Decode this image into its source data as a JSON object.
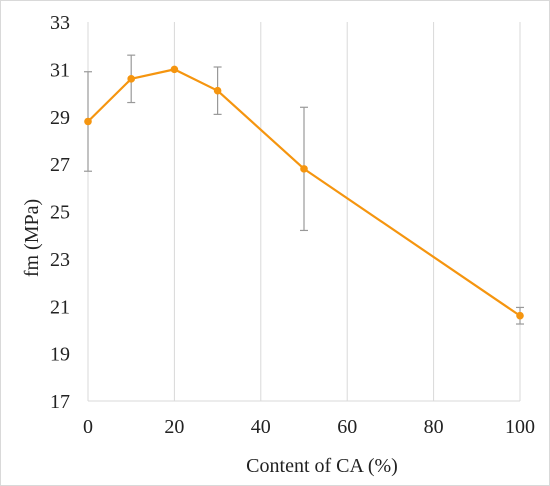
{
  "chart_data": {
    "type": "line",
    "title": "",
    "xlabel": "Content of CA (%)",
    "ylabel": "fm (MPa)",
    "xlim": [
      0,
      100
    ],
    "ylim": [
      17,
      33
    ],
    "xticks": [
      0,
      20,
      40,
      60,
      80,
      100
    ],
    "yticks": [
      17,
      19,
      21,
      23,
      25,
      27,
      29,
      31,
      33
    ],
    "grid": "vertical gridlines on",
    "legend": "none",
    "series": [
      {
        "x": [
          0,
          10,
          20,
          30,
          50,
          100
        ],
        "y": [
          28.8,
          30.6,
          31.0,
          30.1,
          26.8,
          20.6
        ],
        "error": [
          2.1,
          1.0,
          0.0,
          1.0,
          2.6,
          0.35
        ],
        "color": "#f5950f"
      }
    ]
  },
  "colors": {
    "line": "#f5950f",
    "error_bar": "#999999",
    "grid": "#d9d9d9",
    "text": "#222222"
  }
}
